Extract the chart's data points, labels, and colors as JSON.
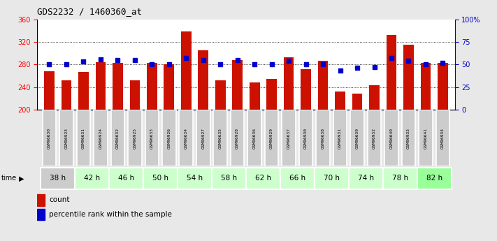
{
  "title": "GDS2232 / 1460360_at",
  "samples": [
    "GSM96630",
    "GSM96923",
    "GSM96631",
    "GSM96924",
    "GSM96632",
    "GSM96925",
    "GSM96633",
    "GSM96926",
    "GSM96634",
    "GSM96927",
    "GSM96635",
    "GSM96928",
    "GSM96636",
    "GSM96929",
    "GSM96637",
    "GSM96930",
    "GSM96638",
    "GSM96931",
    "GSM96639",
    "GSM96932",
    "GSM96640",
    "GSM96933",
    "GSM96641",
    "GSM96934"
  ],
  "counts": [
    268,
    252,
    267,
    284,
    283,
    252,
    283,
    280,
    338,
    305,
    252,
    288,
    248,
    255,
    293,
    272,
    286,
    232,
    228,
    243,
    332,
    315,
    283,
    283
  ],
  "percentile_ranks": [
    50,
    50,
    53,
    56,
    55,
    55,
    50,
    50,
    57,
    55,
    50,
    55,
    50,
    50,
    54,
    50,
    50,
    43,
    46,
    47,
    57,
    54,
    50,
    52
  ],
  "time_groups": [
    {
      "label": "38 h",
      "start": 0,
      "end": 2
    },
    {
      "label": "42 h",
      "start": 2,
      "end": 4
    },
    {
      "label": "46 h",
      "start": 4,
      "end": 6
    },
    {
      "label": "50 h",
      "start": 6,
      "end": 8
    },
    {
      "label": "54 h",
      "start": 8,
      "end": 10
    },
    {
      "label": "58 h",
      "start": 10,
      "end": 12
    },
    {
      "label": "62 h",
      "start": 12,
      "end": 14
    },
    {
      "label": "66 h",
      "start": 14,
      "end": 16
    },
    {
      "label": "70 h",
      "start": 16,
      "end": 18
    },
    {
      "label": "74 h",
      "start": 18,
      "end": 20
    },
    {
      "label": "78 h",
      "start": 20,
      "end": 22
    },
    {
      "label": "82 h",
      "start": 22,
      "end": 24
    }
  ],
  "time_group_colors": [
    "#cccccc",
    "#ccffcc",
    "#ccffcc",
    "#ccffcc",
    "#ccffcc",
    "#ccffcc",
    "#ccffcc",
    "#ccffcc",
    "#ccffcc",
    "#ccffcc",
    "#ccffcc",
    "#99ff99"
  ],
  "sample_box_color": "#cccccc",
  "bar_color": "#cc1100",
  "dot_color": "#0000cc",
  "ylim_left": [
    200,
    360
  ],
  "ylim_right": [
    0,
    100
  ],
  "yticks_left": [
    200,
    240,
    280,
    320,
    360
  ],
  "yticks_right": [
    0,
    25,
    50,
    75,
    100
  ],
  "ytick_labels_right": [
    "0",
    "25",
    "50",
    "75",
    "100%"
  ],
  "grid_values": [
    240,
    280,
    320
  ],
  "bar_width": 0.6,
  "bg_color": "#e8e8e8",
  "plot_bg": "#ffffff",
  "legend_count_label": "count",
  "legend_pct_label": "percentile rank within the sample"
}
